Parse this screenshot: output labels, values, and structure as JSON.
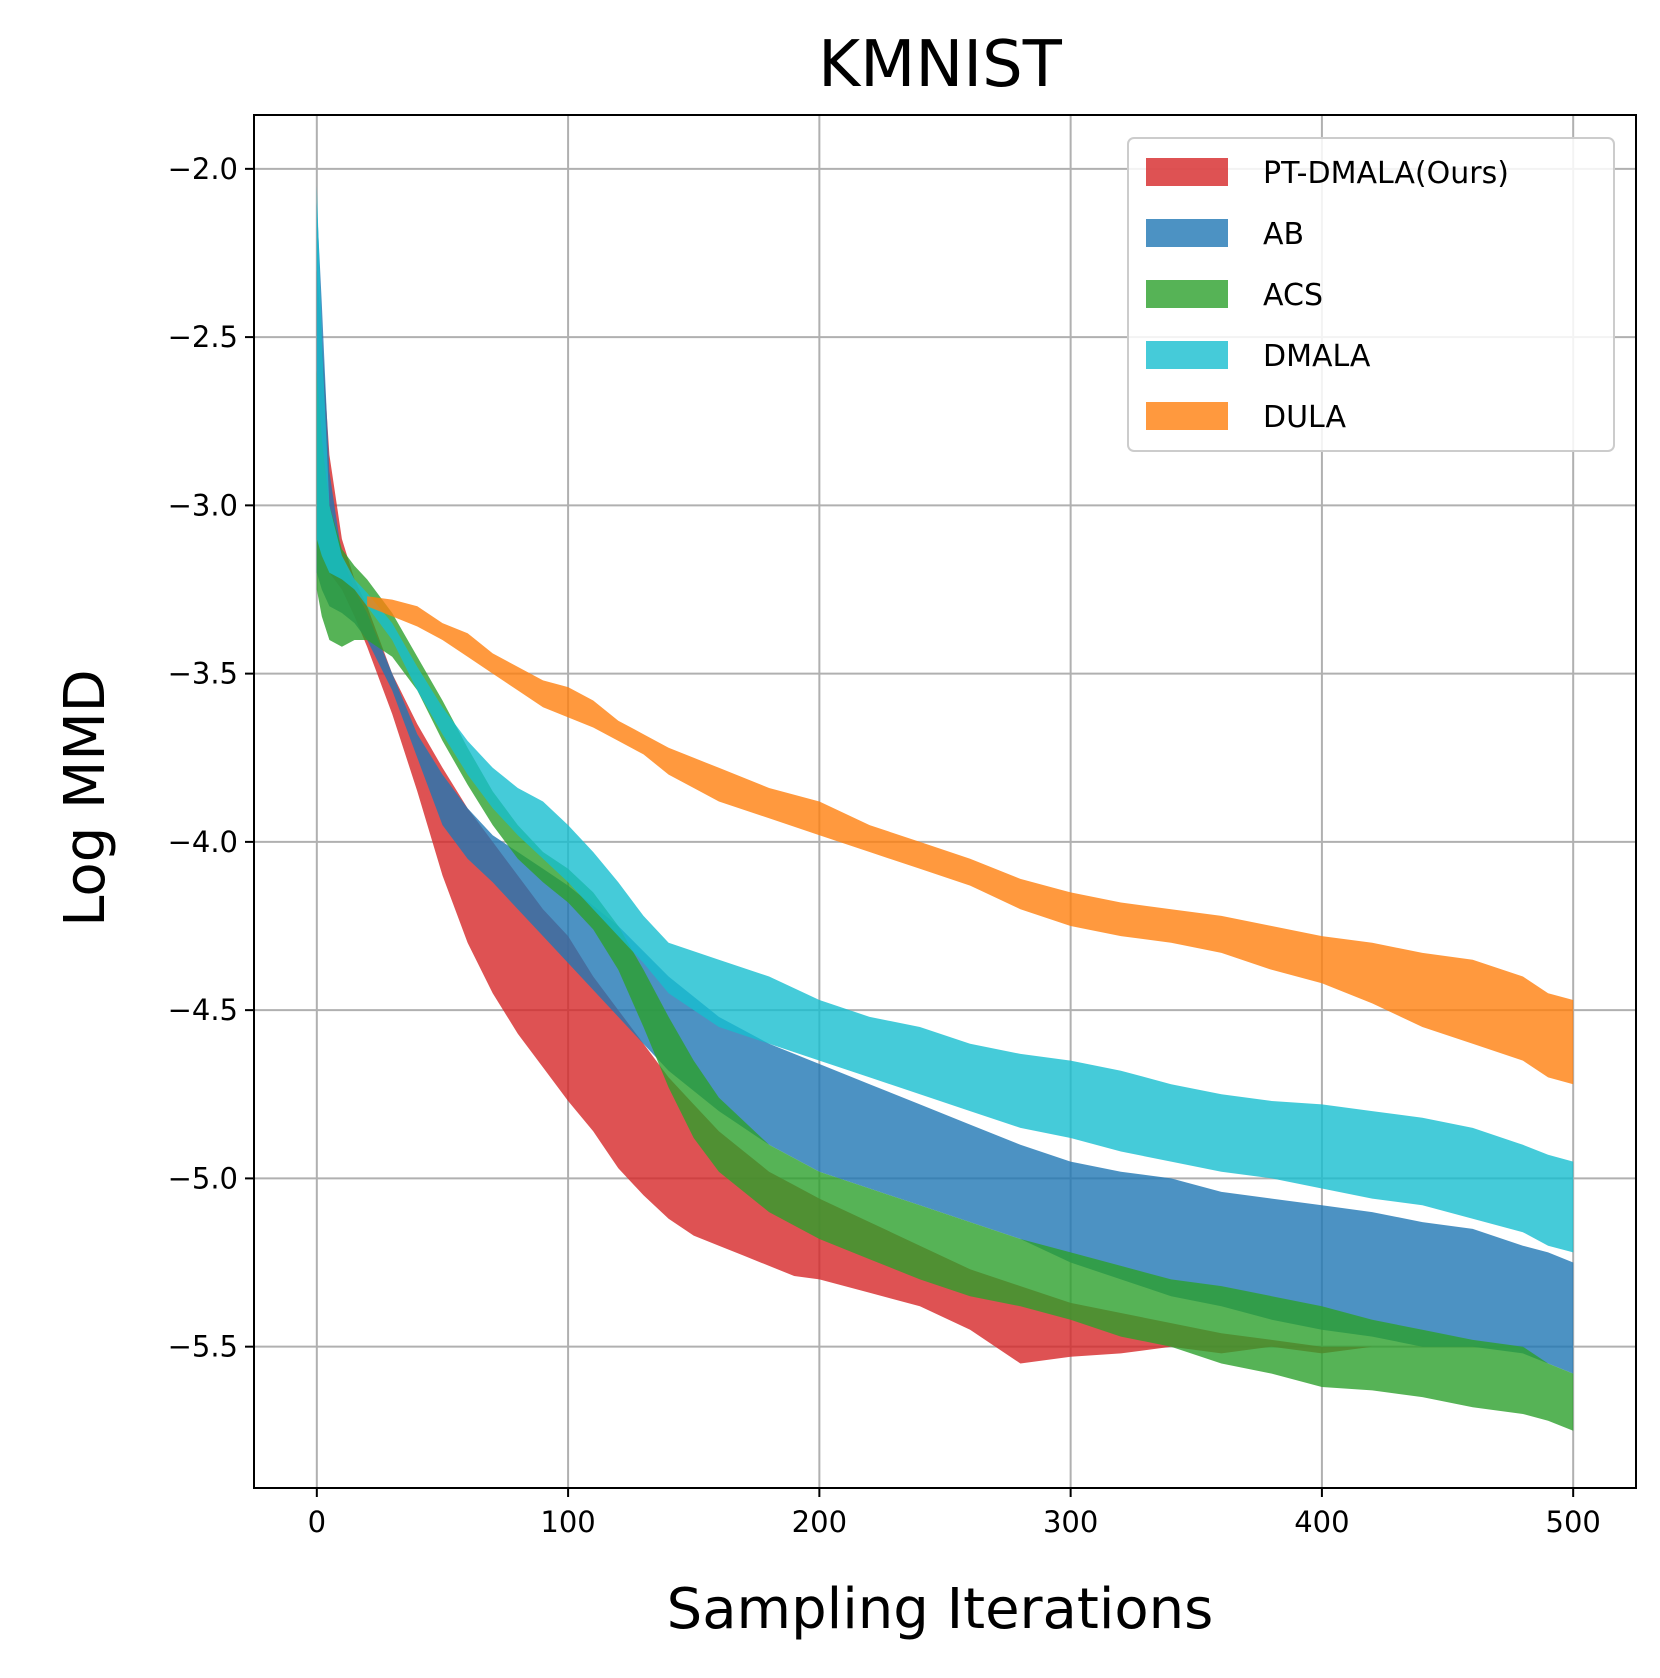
{
  "chart_data": {
    "type": "area",
    "title": "KMNIST",
    "xlabel": "Sampling Iterations",
    "ylabel": "Log MMD",
    "xlim": [
      -25,
      525
    ],
    "ylim": [
      -5.92,
      -1.84
    ],
    "xticks": [
      0,
      100,
      200,
      300,
      400,
      500
    ],
    "xtick_labels": [
      "0",
      "100",
      "200",
      "300",
      "400",
      "500"
    ],
    "yticks": [
      -2.0,
      -2.5,
      -3.0,
      -3.5,
      -4.0,
      -4.5,
      -5.0,
      -5.5
    ],
    "ytick_labels": [
      "−2.0",
      "−2.5",
      "−3.0",
      "−3.5",
      "−4.0",
      "−4.5",
      "−5.0",
      "−5.5"
    ],
    "grid": true,
    "legend_position": "top-right",
    "series": [
      {
        "name": "PT-DMALA(Ours)",
        "color": "#d62728",
        "x": [
          0,
          2,
          5,
          10,
          15,
          20,
          30,
          40,
          50,
          60,
          70,
          80,
          90,
          100,
          110,
          120,
          130,
          140,
          150,
          160,
          170,
          180,
          190,
          200,
          220,
          240,
          260,
          280,
          300,
          320,
          340,
          360,
          380,
          400,
          420,
          430
        ],
        "upper": [
          -2.3,
          -2.5,
          -2.85,
          -3.1,
          -3.22,
          -3.3,
          -3.5,
          -3.65,
          -3.78,
          -3.9,
          -4.0,
          -4.1,
          -4.2,
          -4.28,
          -4.4,
          -4.5,
          -4.6,
          -4.7,
          -4.78,
          -4.86,
          -4.92,
          -4.98,
          -5.02,
          -5.06,
          -5.13,
          -5.2,
          -5.27,
          -5.32,
          -5.37,
          -5.4,
          -5.43,
          -5.46,
          -5.48,
          -5.5,
          -5.5,
          -5.5
        ],
        "lower": [
          -3.1,
          -3.15,
          -3.2,
          -3.25,
          -3.33,
          -3.42,
          -3.62,
          -3.85,
          -4.1,
          -4.3,
          -4.45,
          -4.57,
          -4.67,
          -4.77,
          -4.86,
          -4.97,
          -5.05,
          -5.12,
          -5.17,
          -5.2,
          -5.23,
          -5.26,
          -5.29,
          -5.3,
          -5.34,
          -5.38,
          -5.45,
          -5.55,
          -5.53,
          -5.52,
          -5.5,
          -5.52,
          -5.5,
          -5.52,
          -5.5,
          -5.5
        ]
      },
      {
        "name": "AB",
        "color": "#1f77b4",
        "x": [
          0,
          2,
          5,
          10,
          15,
          20,
          30,
          40,
          50,
          60,
          70,
          80,
          90,
          100,
          120,
          140,
          160,
          180,
          200,
          220,
          240,
          260,
          280,
          300,
          320,
          340,
          360,
          380,
          400,
          420,
          440,
          460,
          480,
          490,
          500
        ],
        "upper": [
          -2.1,
          -2.4,
          -2.9,
          -3.15,
          -3.25,
          -3.32,
          -3.5,
          -3.68,
          -3.8,
          -3.9,
          -3.98,
          -4.03,
          -4.08,
          -4.13,
          -4.25,
          -4.4,
          -4.52,
          -4.6,
          -4.66,
          -4.72,
          -4.78,
          -4.84,
          -4.9,
          -4.95,
          -4.98,
          -5.0,
          -5.04,
          -5.06,
          -5.08,
          -5.1,
          -5.13,
          -5.15,
          -5.2,
          -5.22,
          -5.25
        ],
        "lower": [
          -3.2,
          -3.25,
          -3.3,
          -3.32,
          -3.35,
          -3.4,
          -3.55,
          -3.75,
          -3.95,
          -4.05,
          -4.12,
          -4.2,
          -4.28,
          -4.36,
          -4.52,
          -4.68,
          -4.8,
          -4.9,
          -4.98,
          -5.03,
          -5.08,
          -5.13,
          -5.18,
          -5.25,
          -5.3,
          -5.35,
          -5.38,
          -5.42,
          -5.45,
          -5.47,
          -5.5,
          -5.5,
          -5.52,
          -5.55,
          -5.58
        ]
      },
      {
        "name": "ACS",
        "color": "#2ca02c",
        "x": [
          0,
          2,
          5,
          10,
          15,
          20,
          30,
          40,
          50,
          60,
          70,
          80,
          90,
          100,
          110,
          120,
          130,
          140,
          150,
          160,
          180,
          200,
          220,
          240,
          260,
          280,
          300,
          320,
          340,
          360,
          380,
          400,
          420,
          440,
          460,
          480,
          490,
          500
        ],
        "upper": [
          -2.6,
          -2.8,
          -3.0,
          -3.13,
          -3.18,
          -3.22,
          -3.32,
          -3.45,
          -3.58,
          -3.72,
          -3.85,
          -3.95,
          -4.03,
          -4.08,
          -4.15,
          -4.25,
          -4.38,
          -4.52,
          -4.65,
          -4.76,
          -4.9,
          -4.98,
          -5.03,
          -5.08,
          -5.13,
          -5.18,
          -5.22,
          -5.26,
          -5.3,
          -5.32,
          -5.35,
          -5.38,
          -5.42,
          -5.45,
          -5.48,
          -5.5,
          -5.55,
          -5.58
        ],
        "lower": [
          -3.25,
          -3.33,
          -3.4,
          -3.42,
          -3.4,
          -3.4,
          -3.45,
          -3.55,
          -3.7,
          -3.83,
          -3.95,
          -4.05,
          -4.12,
          -4.18,
          -4.26,
          -4.38,
          -4.55,
          -4.73,
          -4.88,
          -4.98,
          -5.1,
          -5.18,
          -5.24,
          -5.3,
          -5.35,
          -5.38,
          -5.42,
          -5.47,
          -5.5,
          -5.55,
          -5.58,
          -5.62,
          -5.63,
          -5.65,
          -5.68,
          -5.7,
          -5.72,
          -5.75
        ]
      },
      {
        "name": "DMALA",
        "color": "#17becf",
        "x": [
          0,
          2,
          5,
          10,
          15,
          20,
          30,
          40,
          50,
          60,
          70,
          80,
          90,
          100,
          110,
          120,
          130,
          140,
          160,
          180,
          200,
          220,
          240,
          260,
          280,
          300,
          320,
          340,
          360,
          380,
          400,
          420,
          440,
          460,
          480,
          490,
          500
        ],
        "upper": [
          -2.05,
          -2.5,
          -3.0,
          -3.15,
          -3.22,
          -3.26,
          -3.35,
          -3.48,
          -3.6,
          -3.7,
          -3.78,
          -3.84,
          -3.88,
          -3.95,
          -4.03,
          -4.12,
          -4.22,
          -4.3,
          -4.35,
          -4.4,
          -4.47,
          -4.52,
          -4.55,
          -4.6,
          -4.63,
          -4.65,
          -4.68,
          -4.72,
          -4.75,
          -4.77,
          -4.78,
          -4.8,
          -4.82,
          -4.85,
          -4.9,
          -4.93,
          -4.95
        ],
        "lower": [
          -3.1,
          -3.15,
          -3.2,
          -3.22,
          -3.25,
          -3.3,
          -3.4,
          -3.55,
          -3.68,
          -3.8,
          -3.9,
          -3.98,
          -4.05,
          -4.12,
          -4.2,
          -4.28,
          -4.36,
          -4.45,
          -4.55,
          -4.6,
          -4.65,
          -4.7,
          -4.75,
          -4.8,
          -4.85,
          -4.88,
          -4.92,
          -4.95,
          -4.98,
          -5.0,
          -5.03,
          -5.06,
          -5.08,
          -5.12,
          -5.16,
          -5.2,
          -5.22
        ]
      },
      {
        "name": "DULA",
        "color": "#ff7f0e",
        "x": [
          20,
          30,
          40,
          50,
          60,
          70,
          80,
          90,
          100,
          110,
          120,
          130,
          140,
          150,
          160,
          180,
          200,
          220,
          240,
          260,
          280,
          300,
          320,
          340,
          360,
          380,
          400,
          420,
          440,
          460,
          480,
          490,
          500
        ],
        "upper": [
          -3.27,
          -3.28,
          -3.3,
          -3.35,
          -3.38,
          -3.44,
          -3.48,
          -3.52,
          -3.54,
          -3.58,
          -3.64,
          -3.68,
          -3.72,
          -3.75,
          -3.78,
          -3.84,
          -3.88,
          -3.95,
          -4.0,
          -4.05,
          -4.11,
          -4.15,
          -4.18,
          -4.2,
          -4.22,
          -4.25,
          -4.28,
          -4.3,
          -4.33,
          -4.35,
          -4.4,
          -4.45,
          -4.47
        ],
        "lower": [
          -3.3,
          -3.33,
          -3.36,
          -3.4,
          -3.45,
          -3.5,
          -3.55,
          -3.6,
          -3.63,
          -3.66,
          -3.7,
          -3.74,
          -3.8,
          -3.84,
          -3.88,
          -3.93,
          -3.98,
          -4.03,
          -4.08,
          -4.13,
          -4.2,
          -4.25,
          -4.28,
          -4.3,
          -4.33,
          -4.38,
          -4.42,
          -4.48,
          -4.55,
          -4.6,
          -4.65,
          -4.7,
          -4.72
        ]
      }
    ]
  }
}
